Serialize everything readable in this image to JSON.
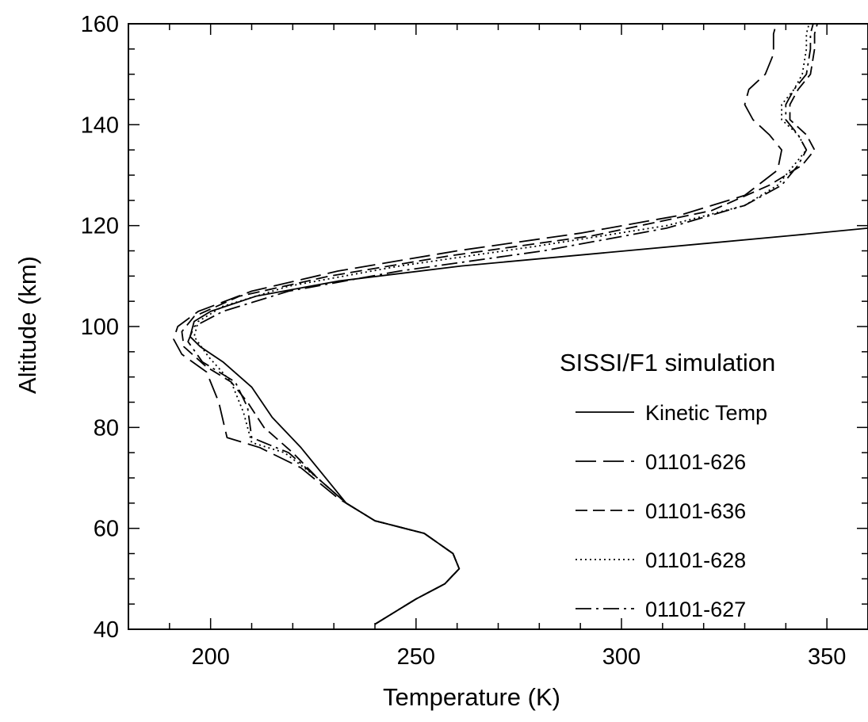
{
  "chart_data": {
    "type": "line",
    "title": "",
    "xlabel": "Temperature (K)",
    "ylabel": "Altitude (km)",
    "xlim": [
      180,
      360
    ],
    "ylim": [
      40,
      160
    ],
    "x_ticks": [
      200,
      250,
      300,
      350
    ],
    "y_ticks": [
      40,
      60,
      80,
      100,
      120,
      140,
      160
    ],
    "grid": false,
    "legend_title": "SISSI/F1 simulation",
    "legend_position": "right",
    "series": [
      {
        "name": "Kinetic Temp",
        "dash": "solid",
        "points": [
          [
            240,
            41
          ],
          [
            250,
            46
          ],
          [
            257,
            49
          ],
          [
            260.5,
            52
          ],
          [
            259,
            55
          ],
          [
            252,
            59
          ],
          [
            240,
            61.5
          ],
          [
            233,
            65
          ],
          [
            227,
            71
          ],
          [
            222,
            76
          ],
          [
            215,
            82
          ],
          [
            210,
            88
          ],
          [
            203,
            93
          ],
          [
            197.5,
            96
          ],
          [
            195,
            98
          ],
          [
            196,
            101
          ],
          [
            200,
            103
          ],
          [
            211,
            106
          ],
          [
            231,
            109
          ],
          [
            261,
            112
          ],
          [
            301,
            115
          ],
          [
            341,
            118
          ],
          [
            360,
            119.5
          ]
        ]
      },
      {
        "name": "01101-626",
        "dash": "long-dash",
        "points": [
          [
            240,
            41
          ],
          [
            250,
            46
          ],
          [
            257,
            49
          ],
          [
            260.5,
            52
          ],
          [
            259,
            55
          ],
          [
            252,
            59
          ],
          [
            240,
            61.5
          ],
          [
            231,
            66
          ],
          [
            222,
            72
          ],
          [
            212,
            76
          ],
          [
            204,
            78
          ],
          [
            202,
            85
          ],
          [
            199,
            91
          ],
          [
            193,
            94.5
          ],
          [
            191,
            97.5
          ],
          [
            192,
            100
          ],
          [
            197,
            103
          ],
          [
            210,
            107
          ],
          [
            231,
            111
          ],
          [
            260,
            115
          ],
          [
            290,
            118.5
          ],
          [
            314,
            122
          ],
          [
            330,
            126
          ],
          [
            338,
            131
          ],
          [
            339,
            135
          ],
          [
            336,
            138
          ],
          [
            332,
            141
          ],
          [
            330,
            144
          ],
          [
            331,
            147
          ],
          [
            335,
            150
          ],
          [
            337,
            154
          ],
          [
            337,
            158
          ],
          [
            338,
            161
          ]
        ]
      },
      {
        "name": "01101-636",
        "dash": "medium-dash",
        "points": [
          [
            240,
            41
          ],
          [
            250,
            46
          ],
          [
            257,
            49
          ],
          [
            260.5,
            52
          ],
          [
            259,
            55
          ],
          [
            252,
            59
          ],
          [
            240,
            61.5
          ],
          [
            233,
            65
          ],
          [
            226,
            70
          ],
          [
            220,
            75
          ],
          [
            213,
            80
          ],
          [
            209,
            85
          ],
          [
            205,
            89
          ],
          [
            199,
            92
          ],
          [
            193.5,
            96
          ],
          [
            193,
            99
          ],
          [
            196,
            102
          ],
          [
            207,
            106
          ],
          [
            229,
            110
          ],
          [
            258,
            114
          ],
          [
            293,
            118
          ],
          [
            322,
            123
          ],
          [
            336,
            128
          ],
          [
            344,
            132
          ],
          [
            347,
            135
          ],
          [
            345,
            138
          ],
          [
            341,
            141
          ],
          [
            341,
            144
          ],
          [
            343,
            147
          ],
          [
            346,
            150
          ],
          [
            347,
            155
          ],
          [
            347,
            158
          ],
          [
            348,
            161
          ]
        ]
      },
      {
        "name": "01101-628",
        "dash": "dotted",
        "points": [
          [
            240,
            41
          ],
          [
            250,
            46
          ],
          [
            257,
            49
          ],
          [
            260.5,
            52
          ],
          [
            259,
            55
          ],
          [
            252,
            59
          ],
          [
            240,
            61.5
          ],
          [
            233,
            65
          ],
          [
            226,
            70
          ],
          [
            218,
            75
          ],
          [
            210,
            77
          ],
          [
            208,
            83
          ],
          [
            205,
            89
          ],
          [
            199.5,
            94
          ],
          [
            196,
            98
          ],
          [
            197,
            101
          ],
          [
            203,
            104
          ],
          [
            219,
            108
          ],
          [
            246,
            112
          ],
          [
            280,
            116
          ],
          [
            311,
            120
          ],
          [
            330,
            124
          ],
          [
            338,
            128
          ],
          [
            342,
            132
          ],
          [
            345,
            135
          ],
          [
            343,
            138
          ],
          [
            339,
            141
          ],
          [
            339,
            144
          ],
          [
            342,
            147
          ],
          [
            344,
            150
          ],
          [
            345,
            155
          ],
          [
            345,
            158
          ],
          [
            346,
            161
          ]
        ]
      },
      {
        "name": "01101-627",
        "dash": "dash-dot",
        "points": [
          [
            240,
            41
          ],
          [
            250,
            46
          ],
          [
            257,
            49
          ],
          [
            260.5,
            52
          ],
          [
            259,
            55
          ],
          [
            252,
            59
          ],
          [
            240,
            61.5
          ],
          [
            233,
            65
          ],
          [
            226,
            70
          ],
          [
            219,
            75
          ],
          [
            210,
            78
          ],
          [
            209,
            84
          ],
          [
            206,
            89
          ],
          [
            198,
            93
          ],
          [
            194.5,
            97
          ],
          [
            196,
            100
          ],
          [
            203,
            103
          ],
          [
            219,
            107
          ],
          [
            246,
            111
          ],
          [
            281,
            115
          ],
          [
            311,
            119.5
          ],
          [
            330,
            124
          ],
          [
            339,
            128
          ],
          [
            343,
            132
          ],
          [
            345,
            135
          ],
          [
            343,
            138
          ],
          [
            340,
            141
          ],
          [
            340,
            144
          ],
          [
            342,
            147
          ],
          [
            345,
            150
          ],
          [
            346,
            155
          ],
          [
            346,
            158
          ],
          [
            347,
            161
          ]
        ]
      }
    ]
  }
}
